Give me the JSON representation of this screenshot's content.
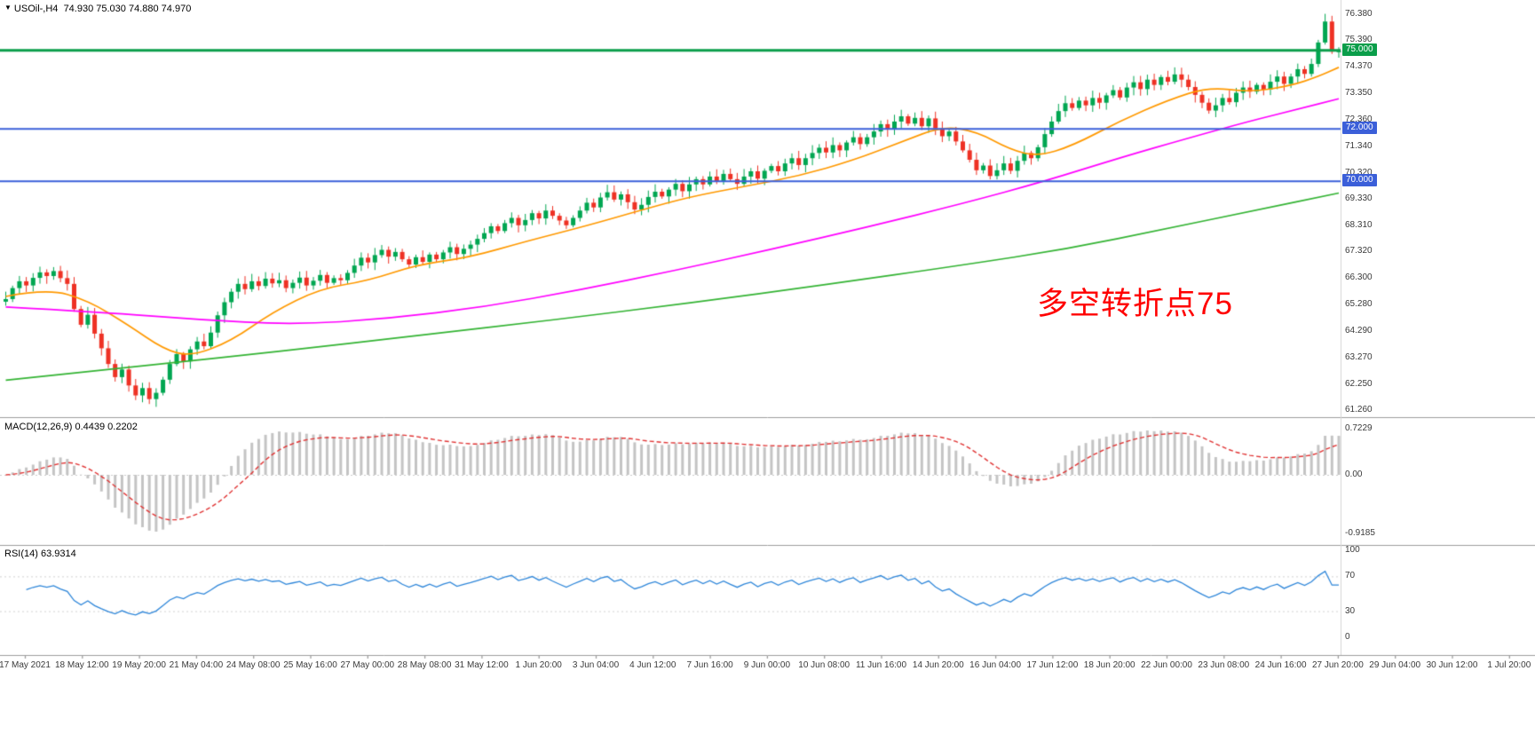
{
  "title_bar": {
    "marker_icon": "▼",
    "symbol_timeframe": "USOil-,H4",
    "ohlc": "74.930 75.030 74.880 74.970"
  },
  "annotation": {
    "text": "多空转折点75",
    "color": "#ff0000"
  },
  "main_panel": {
    "y_axis_labels": [
      "76.380",
      "75.390",
      "74.370",
      "73.350",
      "72.360",
      "71.340",
      "70.320",
      "69.330",
      "68.310",
      "67.320",
      "66.300",
      "65.280",
      "64.290",
      "63.270",
      "62.250",
      "61.260"
    ],
    "levels": [
      {
        "price": 75.0,
        "label": "75.000",
        "color": "#0a9e4a",
        "width": 3
      },
      {
        "price": 72.0,
        "label": "72.000",
        "color": "#3b5fd9",
        "width": 2
      },
      {
        "price": 70.0,
        "label": "70.000",
        "color": "#3b5fd9",
        "width": 2
      }
    ]
  },
  "macd_panel": {
    "label": "MACD(12,26,9) 0.4439 0.2202",
    "axis_labels": [
      "0.7229",
      "0.00",
      "-0.9185"
    ]
  },
  "rsi_panel": {
    "label": "RSI(14) 63.9314",
    "axis_labels": [
      "100",
      "70",
      "30",
      "0"
    ],
    "axis_values": [
      100,
      70,
      30,
      0
    ],
    "level_lines": [
      70,
      30
    ]
  },
  "x_axis": {
    "labels": [
      "17 May 2021",
      "18 May 12:00",
      "19 May 20:00",
      "21 May 04:00",
      "24 May 08:00",
      "25 May 16:00",
      "27 May 00:00",
      "28 May 08:00",
      "31 May 12:00",
      "1 Jun 20:00",
      "3 Jun 04:00",
      "4 Jun 12:00",
      "7 Jun 16:00",
      "9 Jun 00:00",
      "10 Jun 08:00",
      "11 Jun 16:00",
      "14 Jun 20:00",
      "16 Jun 04:00",
      "17 Jun 12:00",
      "18 Jun 20:00",
      "22 Jun 00:00",
      "23 Jun 08:00",
      "24 Jun 16:00",
      "27 Jun 20:00",
      "29 Jun 04:00",
      "30 Jun 12:00",
      "1 Jul 20:00"
    ]
  },
  "colors": {
    "candle_up": "#00a651",
    "candle_down": "#ee3124",
    "ma_fast": "#ff9900",
    "ma_mid": "#ff00ff",
    "ma_slow": "#33b333",
    "macd_histogram": "#c4c4c4",
    "macd_signal": "#e03434",
    "rsi_line": "#2e86d9",
    "separator": "#9e9e9e",
    "axis_text": "#3a3a3a",
    "annotation": "#ff0000"
  },
  "chart_data": {
    "type": "candlestick",
    "title": "USOil- H4",
    "x_first": "17 May 2021",
    "x_last": "1 Jul 2021 20:00",
    "y_range": [
      61.26,
      76.38
    ],
    "horizontal_levels": [
      75.0,
      72.0,
      70.0
    ],
    "closes": [
      65.5,
      65.92,
      66.18,
      66.02,
      66.31,
      66.52,
      66.38,
      66.57,
      66.3,
      66.08,
      65.12,
      64.52,
      64.9,
      64.18,
      63.62,
      63.02,
      62.52,
      62.81,
      62.2,
      61.82,
      62.1,
      61.68,
      61.92,
      62.42,
      63.02,
      63.4,
      63.12,
      63.58,
      63.88,
      63.7,
      64.22,
      64.88,
      65.38,
      65.78,
      66.08,
      65.88,
      66.18,
      66.0,
      66.28,
      66.1,
      66.22,
      65.92,
      66.12,
      66.32,
      66.02,
      66.2,
      66.42,
      66.12,
      66.3,
      66.22,
      66.5,
      66.78,
      67.08,
      66.9,
      67.18,
      67.38,
      67.12,
      67.3,
      67.02,
      66.82,
      67.1,
      66.92,
      67.2,
      67.02,
      67.28,
      67.48,
      67.22,
      67.42,
      67.58,
      67.8,
      68.02,
      68.28,
      68.1,
      68.4,
      68.6,
      68.32,
      68.52,
      68.78,
      68.58,
      68.88,
      68.68,
      68.5,
      68.32,
      68.6,
      68.88,
      69.18,
      69.0,
      69.38,
      69.58,
      69.3,
      69.5,
      69.2,
      68.92,
      69.1,
      69.4,
      69.6,
      69.42,
      69.68,
      69.9,
      69.62,
      69.88,
      70.08,
      69.88,
      70.18,
      69.98,
      70.28,
      70.08,
      69.9,
      70.18,
      70.38,
      70.1,
      70.4,
      70.58,
      70.38,
      70.68,
      70.88,
      70.62,
      70.88,
      71.08,
      71.28,
      71.1,
      71.38,
      71.18,
      71.48,
      71.68,
      71.42,
      71.68,
      71.9,
      72.18,
      71.98,
      72.28,
      72.48,
      72.2,
      72.42,
      72.1,
      72.4,
      72.02,
      71.72,
      71.9,
      71.52,
      71.18,
      70.82,
      70.42,
      70.6,
      70.2,
      70.42,
      70.68,
      70.4,
      70.78,
      71.08,
      70.88,
      71.3,
      71.8,
      72.28,
      72.68,
      72.98,
      72.8,
      73.08,
      72.9,
      73.18,
      73.0,
      73.28,
      73.48,
      73.2,
      73.58,
      73.78,
      73.52,
      73.88,
      73.68,
      73.98,
      73.8,
      74.08,
      73.88,
      73.6,
      73.3,
      73.0,
      72.7,
      72.9,
      73.18,
      73.02,
      73.38,
      73.58,
      73.42,
      73.68,
      73.5,
      73.8,
      74.0,
      73.72,
      74.0,
      74.28,
      74.1,
      74.48,
      75.3,
      76.1,
      74.95,
      74.97
    ],
    "moving_averages": [
      {
        "name": "ma-fast",
        "color": "#ff9900",
        "points": [
          [
            0,
            65.6
          ],
          [
            6,
            65.9
          ],
          [
            12,
            65.45
          ],
          [
            18,
            64.5
          ],
          [
            23,
            63.6
          ],
          [
            27,
            63.3
          ],
          [
            33,
            63.9
          ],
          [
            39,
            65.0
          ],
          [
            46,
            65.9
          ],
          [
            53,
            66.2
          ],
          [
            60,
            66.8
          ],
          [
            68,
            67.1
          ],
          [
            76,
            67.7
          ],
          [
            85,
            68.3
          ],
          [
            93,
            68.9
          ],
          [
            100,
            69.4
          ],
          [
            108,
            69.8
          ],
          [
            116,
            70.2
          ],
          [
            124,
            70.8
          ],
          [
            131,
            71.5
          ],
          [
            137,
            72.1
          ],
          [
            142,
            71.9
          ],
          [
            147,
            71.2
          ],
          [
            151,
            70.95
          ],
          [
            156,
            71.35
          ],
          [
            163,
            72.3
          ],
          [
            170,
            73.1
          ],
          [
            176,
            73.6
          ],
          [
            182,
            73.4
          ],
          [
            188,
            73.65
          ],
          [
            192,
            74.0
          ],
          [
            195,
            74.35
          ]
        ]
      },
      {
        "name": "ma-mid",
        "color": "#ff00ff",
        "points": [
          [
            0,
            65.2
          ],
          [
            14,
            65.0
          ],
          [
            28,
            64.72
          ],
          [
            42,
            64.52
          ],
          [
            56,
            64.75
          ],
          [
            70,
            65.2
          ],
          [
            84,
            65.85
          ],
          [
            98,
            66.6
          ],
          [
            112,
            67.4
          ],
          [
            126,
            68.25
          ],
          [
            140,
            69.15
          ],
          [
            152,
            70.0
          ],
          [
            163,
            70.9
          ],
          [
            173,
            71.65
          ],
          [
            182,
            72.3
          ],
          [
            189,
            72.75
          ],
          [
            195,
            73.15
          ]
        ]
      },
      {
        "name": "ma-slow",
        "color": "#33b333",
        "points": [
          [
            0,
            62.4
          ],
          [
            20,
            62.95
          ],
          [
            40,
            63.5
          ],
          [
            60,
            64.1
          ],
          [
            80,
            64.7
          ],
          [
            100,
            65.35
          ],
          [
            120,
            66.05
          ],
          [
            140,
            66.8
          ],
          [
            155,
            67.4
          ],
          [
            170,
            68.2
          ],
          [
            182,
            68.85
          ],
          [
            195,
            69.55
          ]
        ]
      }
    ],
    "macd": {
      "fast": 12,
      "slow": 26,
      "signal": 9,
      "last_main": 0.4439,
      "last_signal": 0.2202,
      "axis": [
        0.7229,
        0.0,
        -0.9185
      ]
    },
    "rsi": {
      "period": 14,
      "last": 63.9314,
      "axis": [
        100,
        70,
        30,
        0
      ],
      "levels": [
        70,
        30
      ]
    }
  }
}
